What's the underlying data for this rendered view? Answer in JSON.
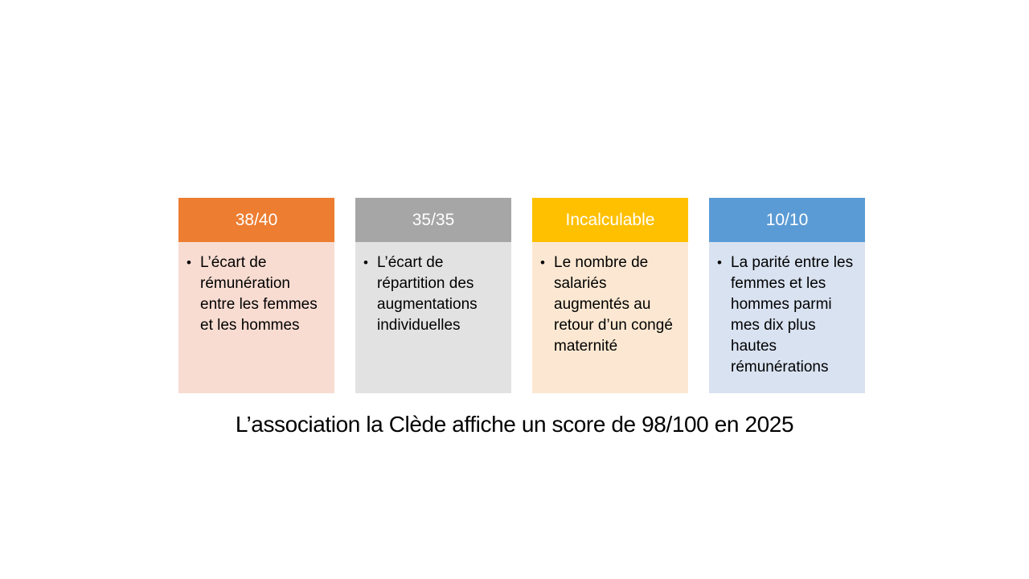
{
  "slide": {
    "background_color": "#FFFFFF",
    "bullet_char": "•",
    "caption": "L’association la Clède affiche un score de 98/100 en 2025",
    "cards": [
      {
        "score": "38/40",
        "description": "L’écart de rémunération entre les femmes et les hommes",
        "header_color": "#ED7D31",
        "header_text_color": "#FFFFFF",
        "body_color": "#F8DCD2"
      },
      {
        "score": "35/35",
        "description": "L’écart de répartition des augmentations individuelles",
        "header_color": "#A6A6A6",
        "header_text_color": "#FFFFFF",
        "body_color": "#E2E2E2"
      },
      {
        "score": "Incalculable",
        "description": "Le nombre de salariés augmentés au retour d’un congé maternité",
        "header_color": "#FFC000",
        "header_text_color": "#FFFFFF",
        "body_color": "#FCE8D2"
      },
      {
        "score": "10/10",
        "description": "La parité entre les femmes et les hommes parmi mes dix plus hautes rémunérations",
        "header_color": "#5B9BD5",
        "header_text_color": "#FFFFFF",
        "body_color": "#D9E2F1"
      }
    ]
  }
}
